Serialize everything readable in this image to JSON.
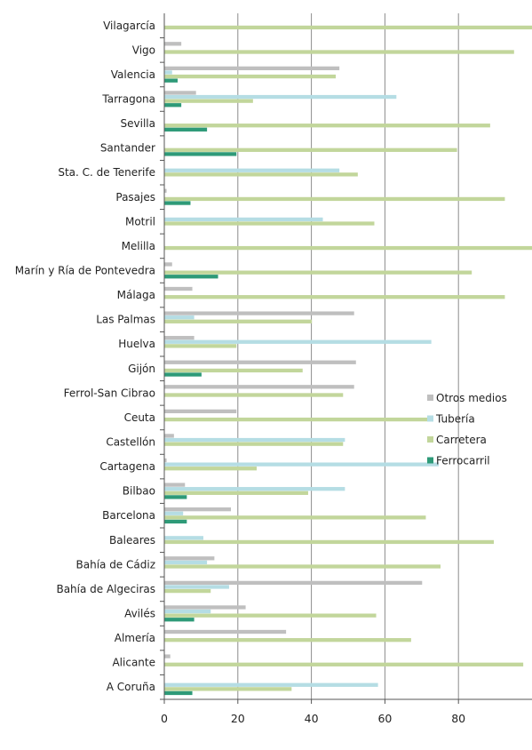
{
  "chart_data": {
    "type": "bar",
    "orientation": "horizontal",
    "title": "",
    "xlabel": "",
    "ylabel": "",
    "xlim": [
      0,
      100
    ],
    "x_ticks": [
      "0",
      "20",
      "40",
      "60",
      "80"
    ],
    "grid": "vertical",
    "legend": "right",
    "categories": [
      "Vilagarcía",
      "Vigo",
      "Valencia",
      "Tarragona",
      "Sevilla",
      "Santander",
      "Sta. C. de Tenerife",
      "Pasajes",
      "Motril",
      "Melilla",
      "Marín y Ría de Pontevedra",
      "Málaga",
      "Las Palmas",
      "Huelva",
      "Gijón",
      "Ferrol-San Cibrao",
      "Ceuta",
      "Castellón",
      "Cartagena",
      "Bilbao",
      "Barcelona",
      "Baleares",
      "Bahía de Cádiz",
      "Bahía de Algeciras",
      "Avilés",
      "Almería",
      "Alicante",
      "A Coruña"
    ],
    "series": [
      {
        "name": "Otros medios",
        "color": "#bfbfbf",
        "values": [
          0,
          4.5,
          47.5,
          8.5,
          0,
          0,
          0,
          0.5,
          0,
          0,
          2,
          7.5,
          51.5,
          8,
          52,
          51.5,
          19.5,
          2.5,
          0.5,
          5.5,
          18,
          0,
          13.5,
          70,
          22,
          33,
          1.5,
          0
        ]
      },
      {
        "name": "Tubería",
        "color": "#b5dde4",
        "values": [
          0,
          0,
          2,
          63,
          0,
          0,
          47.5,
          0,
          43,
          0,
          0,
          0,
          8,
          72.5,
          0,
          0,
          0,
          49,
          74.5,
          49,
          5,
          10.5,
          11.5,
          17.5,
          12.5,
          0,
          0,
          58
        ]
      },
      {
        "name": "Carretera",
        "color": "#c2d69b",
        "values": [
          100,
          95,
          46.5,
          24,
          88.5,
          79.5,
          52.5,
          92.5,
          57,
          100,
          83.5,
          92.5,
          40,
          19.5,
          37.5,
          48.5,
          72,
          48.5,
          25,
          39,
          71,
          89.5,
          75,
          12.5,
          57.5,
          67,
          97.5,
          34.5
        ]
      },
      {
        "name": "Ferrocarril",
        "color": "#2e9a78",
        "values": [
          0,
          0,
          3.5,
          4.5,
          11.5,
          19.5,
          0,
          7,
          0,
          0,
          14.5,
          0,
          0,
          0,
          10,
          0,
          0,
          0,
          0,
          6,
          6,
          0,
          0,
          0,
          8,
          0,
          0,
          7.5
        ]
      }
    ]
  }
}
